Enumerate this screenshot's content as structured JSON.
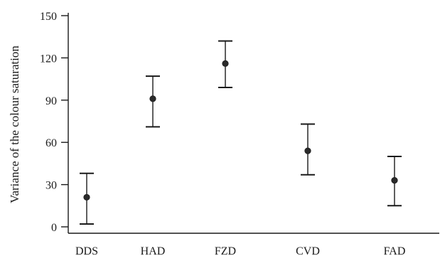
{
  "chart_data": {
    "type": "scatter",
    "subtype": "mean-with-error-bars",
    "title": "",
    "xlabel": "",
    "ylabel": "Variance of the colour saturation",
    "categories": [
      "DDS",
      "HAD",
      "FZD",
      "CVD",
      "FAD"
    ],
    "means": [
      21,
      91,
      116,
      54,
      33
    ],
    "upper": [
      38,
      107,
      132,
      73,
      50
    ],
    "lower": [
      2,
      71,
      99,
      37,
      15
    ],
    "ylim": [
      0,
      150
    ],
    "yticks": [
      0,
      30,
      60,
      90,
      120,
      150
    ],
    "grid": false,
    "legend": "none",
    "colors": {
      "ink": "#1a1a1a",
      "marker": "#2a2a2a"
    }
  }
}
